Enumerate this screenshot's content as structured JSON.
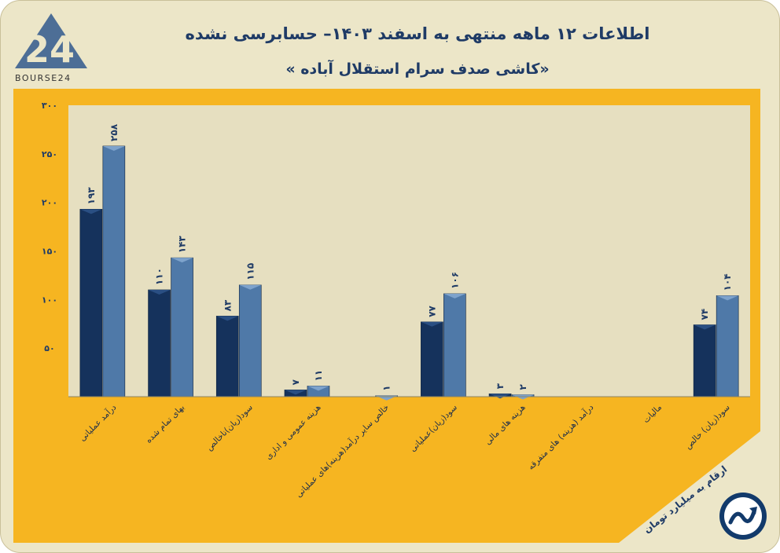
{
  "header": {
    "title": "اطلاعات ۱۲ ماهه منتهی به اسفند ۱۴۰۳– حسابرسی نشده",
    "subtitle": "«کاشی صدف سرام استقلال آباده »",
    "logo_text": "BOURSE24",
    "logo_mark": "24"
  },
  "note": "ارقام به میلیارد تومان",
  "colors": {
    "background": "#ece6c8",
    "panel": "#f6b521",
    "plot": "#e6dfc0",
    "series_dark": "#15325c",
    "series_light": "#4f79a8",
    "text": "#1f3b66"
  },
  "chart_data": {
    "type": "bar",
    "title": "",
    "xlabel": "",
    "ylabel": "",
    "ylim": [
      0,
      300
    ],
    "yticks": [
      50,
      100,
      150,
      200,
      250,
      300
    ],
    "ytick_labels": [
      "۵۰",
      "۱۰۰",
      "۱۵۰",
      "۲۰۰",
      "۲۵۰",
      "۳۰۰"
    ],
    "grid": false,
    "legend": "none",
    "categories": [
      "درآمد عملیاتی",
      "بهای تمام شده",
      "سود(زیان)ناخالص",
      "هزینه عمومی و اداری",
      "خالص سایر درآمد(هزینه)های عملیاتی",
      "سود(زیان)عملیاتی",
      "هزینه های مالی",
      "درآمد (هزینه) های متفرقه",
      "مالیات",
      "سود(زیان) خالص"
    ],
    "series": [
      {
        "values": [
          193,
          110,
          83,
          7,
          0,
          77,
          3,
          0,
          0,
          74
        ],
        "labels": [
          "۱۹۳",
          "۱۱۰",
          "۸۳",
          "۷",
          "",
          "۷۷",
          "۳",
          "",
          "",
          "۷۴"
        ]
      },
      {
        "values": [
          258,
          143,
          115,
          11,
          1,
          106,
          2,
          0,
          0,
          104
        ],
        "labels": [
          "۲۵۸",
          "۱۴۳",
          "۱۱۵",
          "۱۱",
          "۱",
          "۱۰۶",
          "۲",
          "",
          "",
          "۱۰۴"
        ]
      }
    ]
  }
}
